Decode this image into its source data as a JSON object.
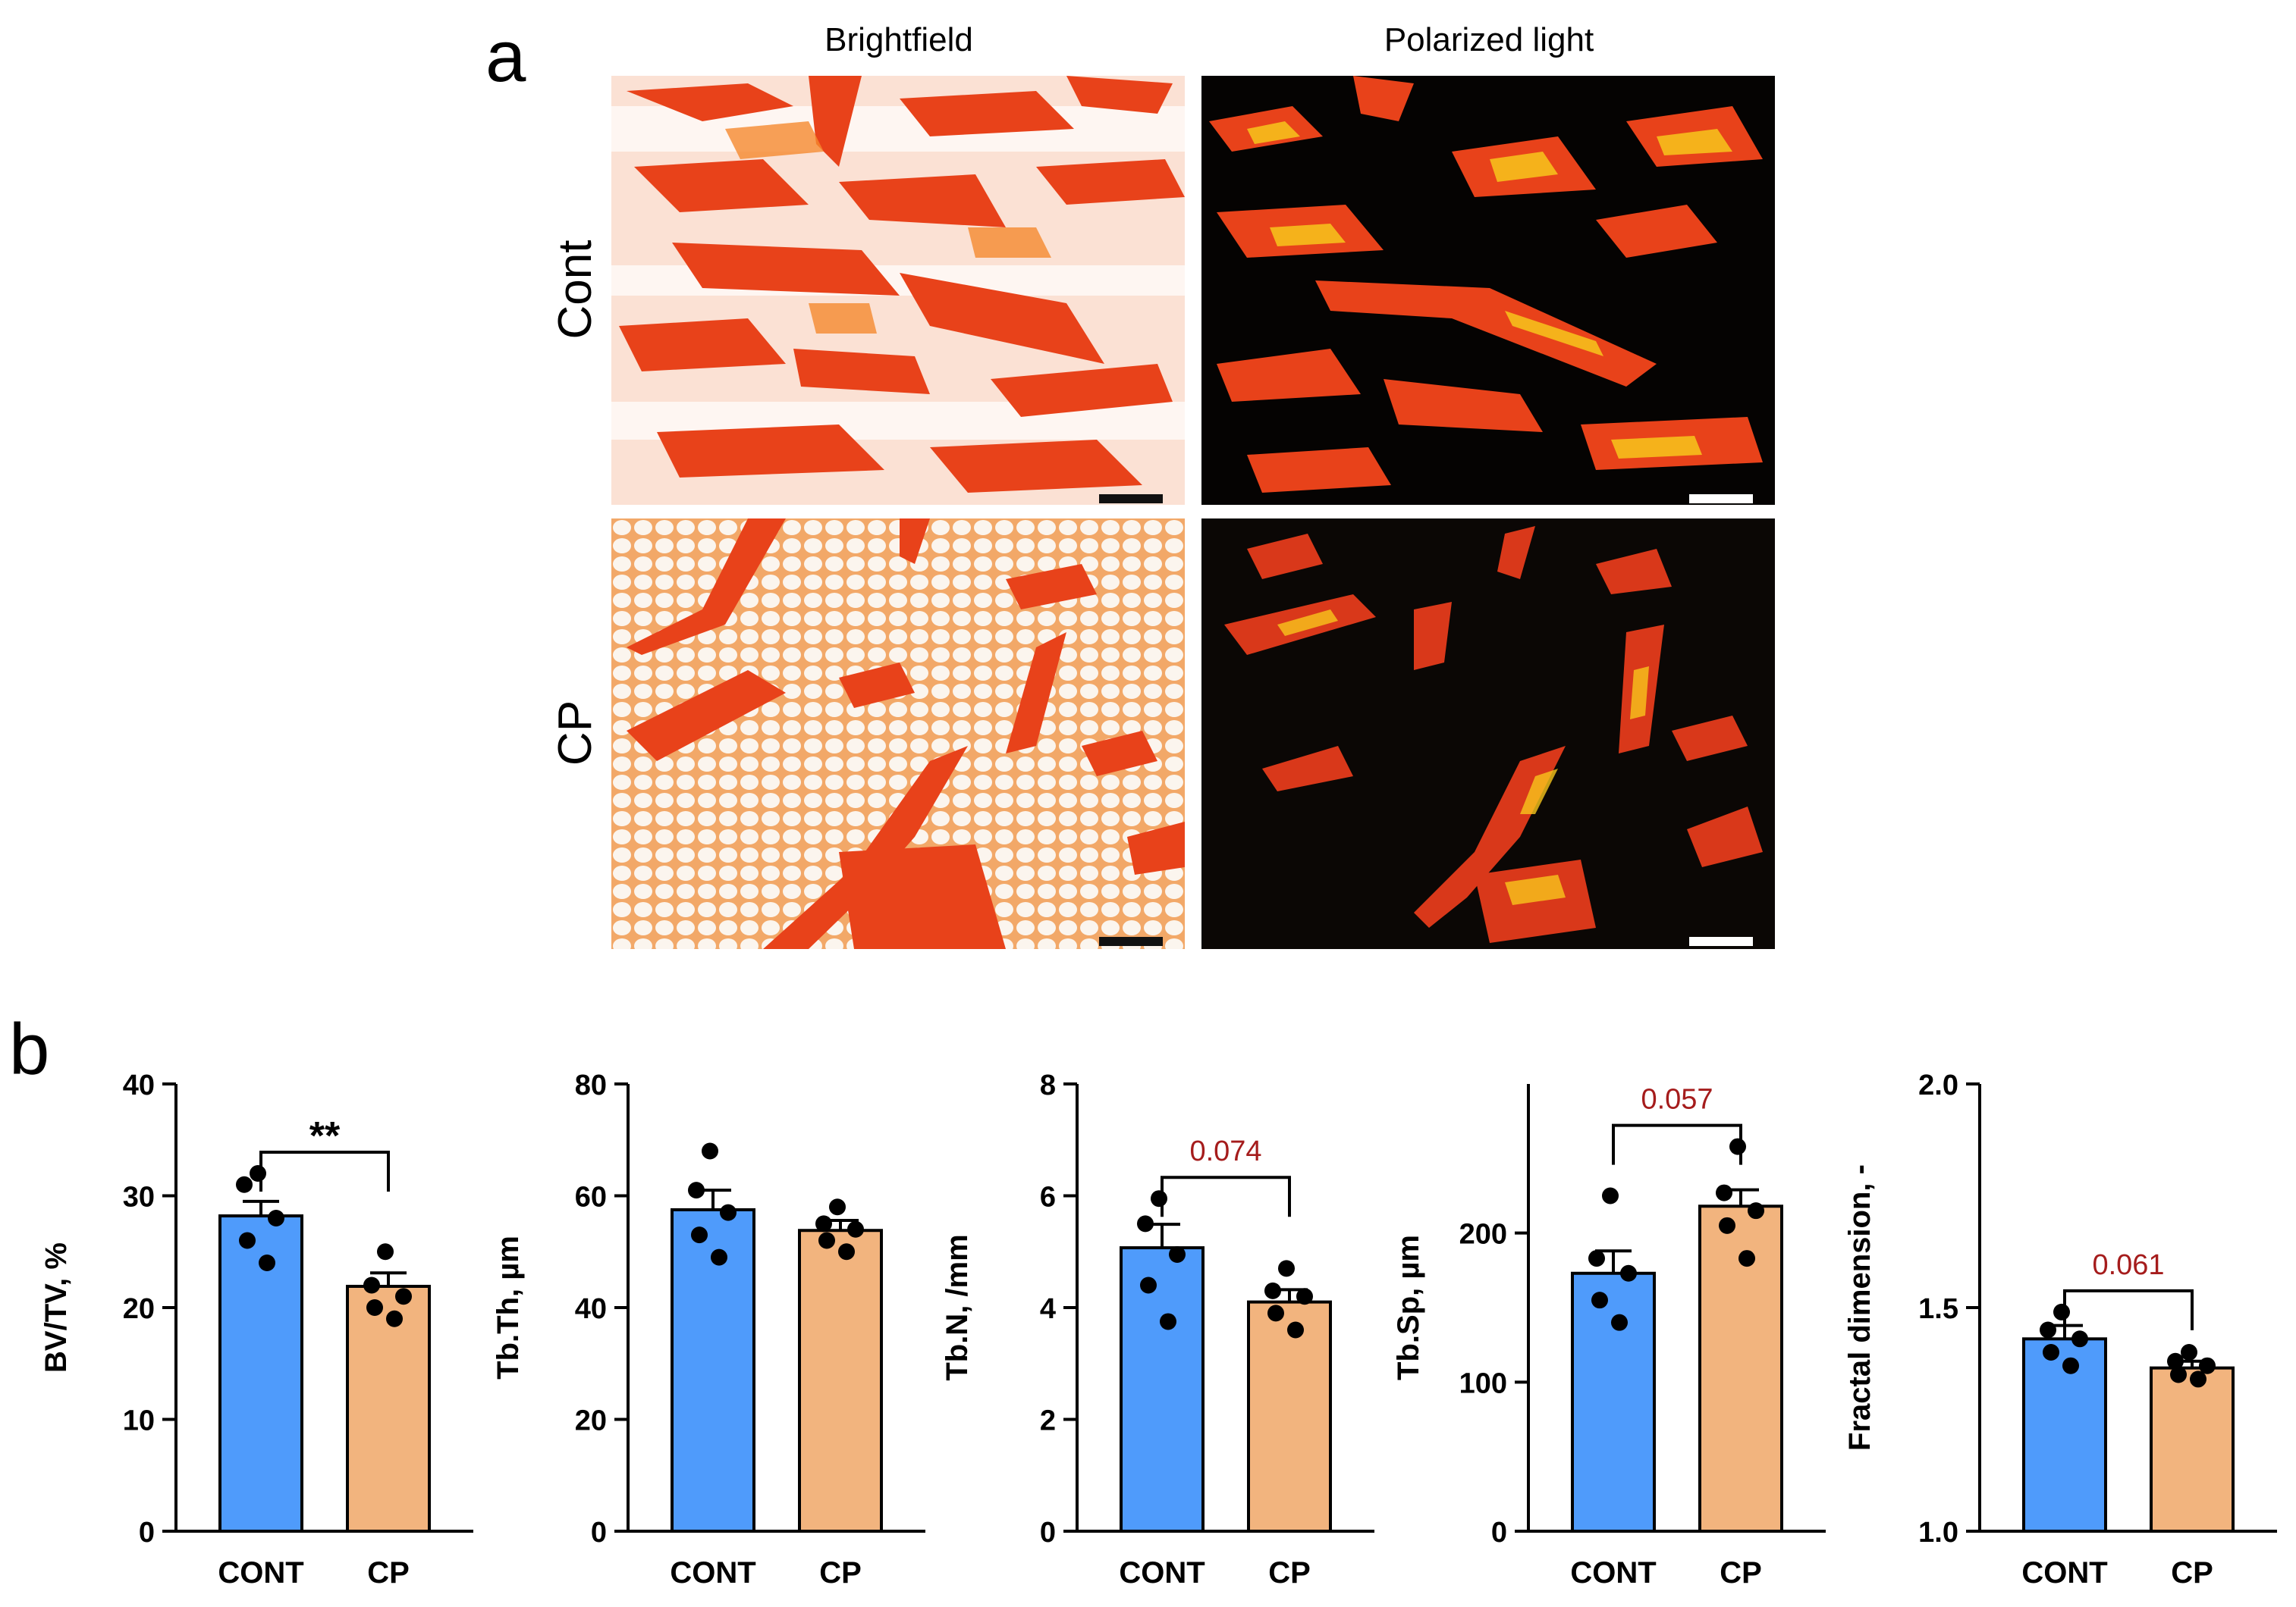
{
  "panel_a": {
    "letter": "a",
    "col_headers": [
      "Brightfield",
      "Polarized light"
    ],
    "row_labels": [
      "Cont",
      "CP"
    ]
  },
  "panel_b": {
    "letter": "b"
  },
  "colors": {
    "cont": "#4f9bfb",
    "cp": "#f2b47e",
    "sig_text": "#a51c1c",
    "stain_red": "#e8421a",
    "stain_orange": "#f58a2e",
    "polar_yellow": "#f7c61c",
    "scalebar_dark": "#111111",
    "scalebar_light": "#ffffff"
  },
  "chart_data": [
    {
      "type": "bar",
      "categories": [
        "CONT",
        "CP"
      ],
      "values": [
        28.2,
        21.9
      ],
      "sem": [
        1.3,
        1.2
      ],
      "points": [
        [
          32,
          31,
          28,
          26,
          24
        ],
        [
          25,
          22,
          21,
          20,
          19
        ]
      ],
      "ylabel": "BV/TV, %",
      "ylim": [
        0,
        40
      ],
      "yticks": [
        0,
        10,
        20,
        30,
        40
      ],
      "annotation": {
        "text": "**",
        "color": "black"
      }
    },
    {
      "type": "bar",
      "categories": [
        "CONT",
        "CP"
      ],
      "values": [
        57.5,
        53.8
      ],
      "sem": [
        3.5,
        1.8
      ],
      "points": [
        [
          68,
          61,
          57,
          53,
          49
        ],
        [
          58,
          55,
          54,
          52,
          50
        ]
      ],
      "ylabel": "Tb.Th, µm",
      "ylim": [
        0,
        80
      ],
      "yticks": [
        0,
        20,
        40,
        60,
        80
      ],
      "annotation": null
    },
    {
      "type": "bar",
      "categories": [
        "CONT",
        "CP"
      ],
      "values": [
        5.07,
        4.1
      ],
      "sem": [
        0.42,
        0.22
      ],
      "points": [
        [
          5.95,
          5.5,
          4.95,
          4.4,
          3.75
        ],
        [
          4.7,
          4.3,
          4.2,
          3.9,
          3.6
        ]
      ],
      "ylabel": "Tb.N, /mm",
      "ylim": [
        0,
        8
      ],
      "yticks": [
        0,
        2,
        4,
        6,
        8
      ],
      "annotation": {
        "text": "0.074",
        "color": "sig"
      }
    },
    {
      "type": "bar",
      "categories": [
        "CONT",
        "CP"
      ],
      "values": [
        173,
        218
      ],
      "sem": [
        15,
        11
      ],
      "points": [
        [
          225,
          183,
          173,
          155,
          140
        ],
        [
          258,
          227,
          215,
          205,
          183
        ]
      ],
      "ylabel": "Tb.Sp, µm",
      "ylim": [
        0,
        300
      ],
      "yticks": [
        0,
        100,
        200
      ],
      "annotation": {
        "text": "0.057",
        "color": "sig"
      }
    },
    {
      "type": "bar",
      "categories": [
        "CONT",
        "CP"
      ],
      "values": [
        1.43,
        1.365
      ],
      "sem": [
        0.03,
        0.015
      ],
      "points": [
        [
          1.49,
          1.45,
          1.43,
          1.4,
          1.37
        ],
        [
          1.4,
          1.38,
          1.37,
          1.35,
          1.34
        ]
      ],
      "ylabel": "Fractal dimension, -",
      "ylim": [
        1.0,
        2.0
      ],
      "yticks": [
        1.0,
        1.5,
        2.0
      ],
      "tick_format": "fixed1",
      "annotation": {
        "text": "0.061",
        "color": "sig"
      }
    }
  ]
}
